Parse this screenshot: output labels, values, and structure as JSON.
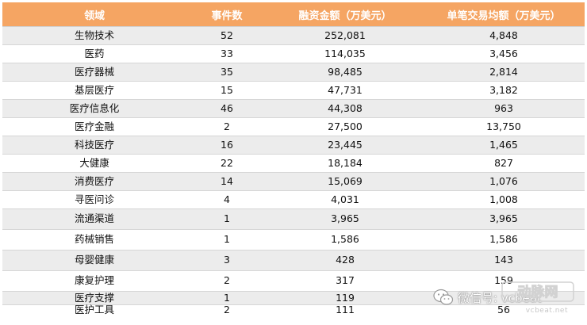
{
  "table": {
    "headers": [
      "领域",
      "事件数",
      "融资金额（万美元）",
      "单笔交易均额（万美元）"
    ],
    "rows": [
      [
        "生物技术",
        "52",
        "252,081",
        "4,848"
      ],
      [
        "医药",
        "33",
        "114,035",
        "3,456"
      ],
      [
        "医疗器械",
        "35",
        "98,485",
        "2,814"
      ],
      [
        "基层医疗",
        "15",
        "47,731",
        "3,182"
      ],
      [
        "医疗信息化",
        "46",
        "44,308",
        "963"
      ],
      [
        "医疗金融",
        "2",
        "27,500",
        "13,750"
      ],
      [
        "科技医疗",
        "16",
        "23,445",
        "1,465"
      ],
      [
        "大健康",
        "22",
        "18,184",
        "827"
      ],
      [
        "消费医疗",
        "14",
        "15,069",
        "1,076"
      ],
      [
        "寻医问诊",
        "4",
        "4,031",
        "1,008"
      ],
      [
        "流通渠道",
        "1",
        "3,965",
        "3,965"
      ],
      [
        "药械销售",
        "1",
        "1,586",
        "1,586"
      ],
      [
        "母婴健康",
        "3",
        "428",
        "143"
      ],
      [
        "康复护理",
        "2",
        "317",
        "159"
      ],
      [
        "医疗支撑",
        "1",
        "119",
        ""
      ],
      [
        "医护工具",
        "2",
        "111",
        "56"
      ]
    ]
  },
  "watermark": {
    "wechat_text": "微信号: vcbeat",
    "logo_text": "动脉网",
    "site_text": "vcbeat.net"
  },
  "colors": {
    "header_bg": "#f5a563",
    "stripe": "#ececec"
  }
}
